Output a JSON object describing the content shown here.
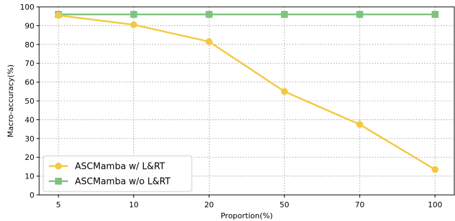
{
  "chart_data": {
    "type": "line",
    "xlabel": "Proportion(%)",
    "ylabel": "Macro-accuracy(%)",
    "categories": [
      "5",
      "10",
      "20",
      "50",
      "70",
      "100"
    ],
    "ylim": [
      0,
      100
    ],
    "yticks": [
      0,
      10,
      20,
      30,
      40,
      50,
      60,
      70,
      80,
      90,
      100
    ],
    "grid": true,
    "legend_position": "bottom-left",
    "series": [
      {
        "name": "ASCMamba w/ L&RT",
        "color": "#f5c842",
        "marker": "circle",
        "values": [
          95.5,
          90.5,
          81.5,
          55,
          37.5,
          13.5
        ]
      },
      {
        "name": "ASCMamba w/o L&RT",
        "color": "#7dc47f",
        "marker": "square",
        "values": [
          96,
          96,
          96,
          96,
          96,
          96
        ]
      }
    ]
  }
}
